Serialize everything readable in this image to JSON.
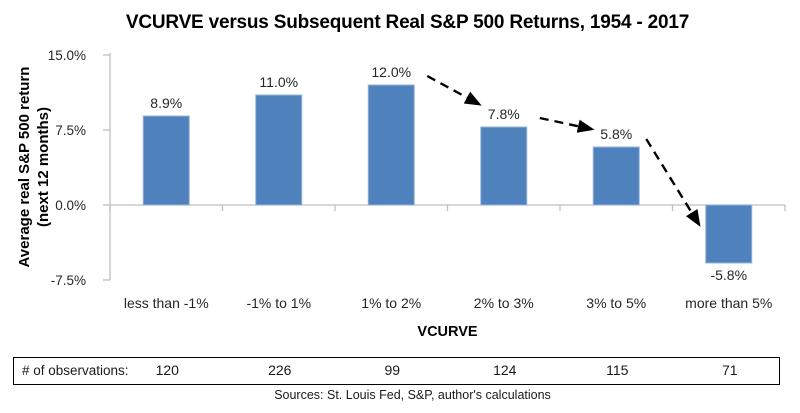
{
  "title": "VCURVE versus Subsequent Real S&P 500 Returns, 1954 - 2017",
  "chart_data": {
    "type": "bar",
    "title": "VCURVE versus Subsequent Real S&P 500 Returns, 1954 - 2017",
    "categories": [
      "less than -1%",
      "-1% to 1%",
      "1% to 2%",
      "2% to 3%",
      "3% to 5%",
      "more than 5%"
    ],
    "values": [
      8.9,
      11.0,
      12.0,
      7.8,
      5.8,
      -5.8
    ],
    "value_labels": [
      "8.9%",
      "11.0%",
      "12.0%",
      "7.8%",
      "5.8%",
      "-5.8%"
    ],
    "xlabel": "VCURVE",
    "ylabel": "Average real S&P 500 return (next 12 months)",
    "ylabel_lines": [
      "Average real S&P 500 return",
      "(next 12 months)"
    ],
    "ylim": [
      -7.5,
      15.0
    ],
    "y_ticks": [
      {
        "label": "15.0%",
        "value": 15.0
      },
      {
        "label": "7.5%",
        "value": 7.5
      },
      {
        "label": "0.0%",
        "value": 0.0
      },
      {
        "label": "-7.5%",
        "value": -7.5
      }
    ],
    "grid": false,
    "legend": "none",
    "bar_color": "#4F81BD",
    "bar_border_color": "#95B3D7",
    "axis_color": "#BFBFBF",
    "annotation_color": "#000000",
    "annotations": [
      {
        "type": "dashed-arrow",
        "from_bar": 2,
        "to_bar": 3
      },
      {
        "type": "dashed-arrow",
        "from_bar": 3,
        "to_bar": 4
      },
      {
        "type": "dashed-arrow",
        "from_bar": 4,
        "to_bar": 5
      }
    ],
    "observations": {
      "label": "# of observations:",
      "values": [
        120,
        226,
        99,
        124,
        115,
        71
      ]
    }
  },
  "footer": {
    "sources": "Sources: St. Louis Fed, S&P, author's calculations"
  }
}
